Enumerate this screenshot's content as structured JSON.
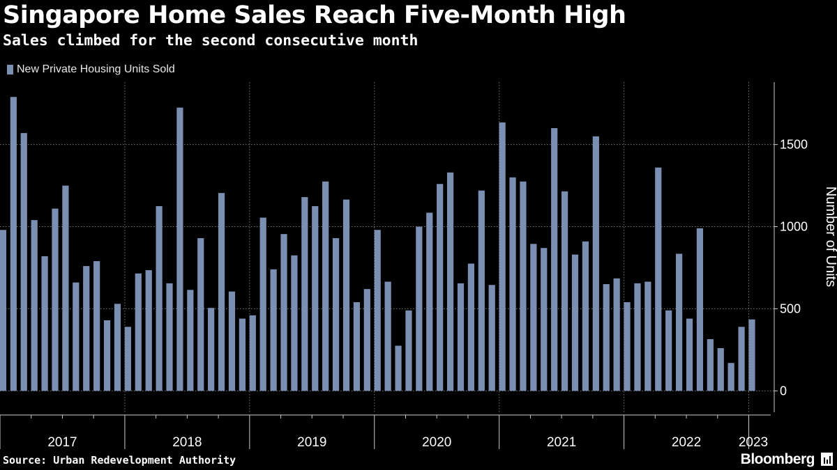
{
  "header": {
    "title": "Singapore Home Sales Reach Five-Month High",
    "subtitle": "Sales climbed for the second consecutive month"
  },
  "footer": {
    "source": "Source: Urban Redevelopment Authority",
    "brand": "Bloomberg"
  },
  "colors": {
    "background": "#000000",
    "bar": "#7b8fb3",
    "grid": "#777777",
    "text": "#ffffff"
  },
  "chart_data": {
    "type": "bar",
    "legend": [
      "New Private Housing Units Sold"
    ],
    "legend_position": "top-left",
    "ylabel": "Number of Units",
    "y_axis_side": "right",
    "ylim": [
      -130,
      1880
    ],
    "yticks": [
      0,
      500,
      1000,
      1500
    ],
    "grid": true,
    "x_labels": [
      "2017",
      "2018",
      "2019",
      "2020",
      "2021",
      "2022",
      "2023"
    ],
    "start": "2017-01",
    "end": "2023-02",
    "series": [
      {
        "name": "New Private Housing Units Sold",
        "values": [
          980,
          1790,
          1570,
          1040,
          820,
          1110,
          1250,
          660,
          760,
          790,
          430,
          530,
          390,
          715,
          735,
          1125,
          655,
          1725,
          615,
          930,
          505,
          1205,
          605,
          440,
          460,
          1055,
          740,
          955,
          825,
          1180,
          1125,
          1275,
          930,
          1165,
          540,
          620,
          980,
          665,
          275,
          490,
          1000,
          1085,
          1260,
          1330,
          655,
          775,
          1220,
          645,
          1635,
          1300,
          1275,
          895,
          870,
          1600,
          1215,
          830,
          910,
          1550,
          650,
          685,
          540,
          655,
          665,
          1360,
          490,
          835,
          440,
          990,
          315,
          260,
          170,
          390,
          435
        ]
      }
    ]
  }
}
